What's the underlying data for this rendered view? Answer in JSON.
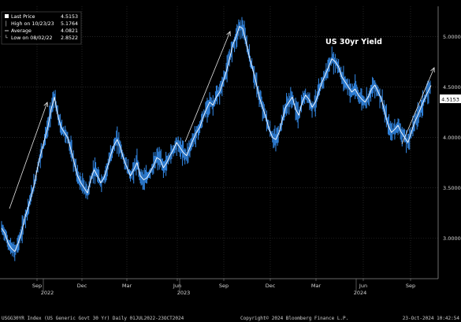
{
  "chart_data": {
    "type": "line",
    "title": "US 30yr Yield",
    "y_ticks": [
      3.0,
      3.5,
      4.0,
      4.5,
      5.0
    ],
    "y_tick_labels": [
      "3.0000",
      "3.5000",
      "4.0000",
      "4.5000",
      "5.0000"
    ],
    "ylim": [
      2.6,
      5.3
    ],
    "x_ticks": [
      "Sep",
      "Dec",
      "Mar",
      "Jun",
      "Sep",
      "Dec",
      "Mar",
      "Jun",
      "Sep"
    ],
    "years": [
      "2022",
      "2023",
      "2024"
    ],
    "grid": true,
    "legend_position": "top-left",
    "series": [
      {
        "values": [
          3.1,
          3.05,
          2.95,
          2.9,
          2.87,
          2.95,
          3.05,
          3.2,
          3.3,
          3.42,
          3.55,
          3.72,
          3.85,
          3.98,
          4.1,
          4.28,
          4.4,
          4.22,
          4.1,
          4.05,
          4.0,
          3.88,
          3.75,
          3.62,
          3.55,
          3.5,
          3.45,
          3.58,
          3.68,
          3.62,
          3.55,
          3.6,
          3.7,
          3.82,
          3.92,
          3.98,
          3.9,
          3.78,
          3.7,
          3.62,
          3.68,
          3.75,
          3.62,
          3.58,
          3.6,
          3.66,
          3.72,
          3.8,
          3.78,
          3.7,
          3.75,
          3.82,
          3.88,
          3.95,
          3.9,
          3.85,
          3.82,
          3.9,
          3.98,
          4.05,
          4.1,
          4.2,
          4.28,
          4.35,
          4.32,
          4.4,
          4.45,
          4.55,
          4.65,
          4.78,
          4.92,
          5.0,
          5.1,
          5.08,
          4.95,
          4.8,
          4.68,
          4.55,
          4.4,
          4.3,
          4.2,
          4.08,
          4.0,
          3.98,
          4.05,
          4.18,
          4.3,
          4.35,
          4.4,
          4.28,
          4.22,
          4.35,
          4.42,
          4.38,
          4.3,
          4.35,
          4.45,
          4.55,
          4.62,
          4.7,
          4.78,
          4.75,
          4.7,
          4.6,
          4.55,
          4.5,
          4.45,
          4.48,
          4.42,
          4.38,
          4.35,
          4.4,
          4.48,
          4.52,
          4.45,
          4.38,
          4.25,
          4.12,
          4.05,
          4.08,
          4.12,
          4.05,
          4.0,
          3.95,
          4.05,
          4.15,
          4.22,
          4.3,
          4.38,
          4.45,
          4.5153
        ],
        "color": "#ffffff",
        "fill_color": "#2f7fd6"
      }
    ],
    "legend": [
      {
        "label": "Last Price",
        "value": "4.5153"
      },
      {
        "label": "High on 10/23/23",
        "value": "5.1764"
      },
      {
        "label": "Average",
        "value": "4.0821"
      },
      {
        "label": "Low on 08/02/22",
        "value": "2.8522"
      }
    ],
    "last_price_tag": "4.5153"
  },
  "footer": {
    "left": "USGG30YR Index (US Generic Govt 30 Yr)  Daily 01JUL2022-23OCT2024",
    "center": "Copyright© 2024 Bloomberg Finance L.P.",
    "right": "23-Oct-2024 10:42:54"
  }
}
